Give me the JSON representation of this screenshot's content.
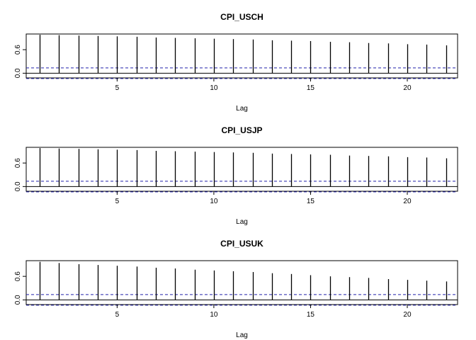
{
  "chart_data": [
    {
      "type": "bar",
      "title": "CPI_USCH",
      "xlabel": "Lag",
      "ylabel": "",
      "xlim": [
        0.3,
        22.6
      ],
      "ylim": [
        -0.12,
        1.0
      ],
      "xticks": [
        5,
        10,
        15,
        20
      ],
      "yticks": [
        0.0,
        0.6
      ],
      "ci": 0.135,
      "x": [
        1,
        2,
        3,
        4,
        5,
        6,
        7,
        8,
        9,
        10,
        11,
        12,
        13,
        14,
        15,
        16,
        17,
        18,
        19,
        20,
        21,
        22
      ],
      "values": [
        0.98,
        0.97,
        0.96,
        0.95,
        0.94,
        0.93,
        0.91,
        0.9,
        0.89,
        0.88,
        0.87,
        0.86,
        0.84,
        0.83,
        0.82,
        0.8,
        0.79,
        0.77,
        0.76,
        0.74,
        0.73,
        0.71
      ]
    },
    {
      "type": "bar",
      "title": "CPI_USJP",
      "xlabel": "Lag",
      "ylabel": "",
      "xlim": [
        0.3,
        22.6
      ],
      "ylim": [
        -0.12,
        1.0
      ],
      "xticks": [
        5,
        10,
        15,
        20
      ],
      "yticks": [
        0.0,
        0.6
      ],
      "ci": 0.135,
      "x": [
        1,
        2,
        3,
        4,
        5,
        6,
        7,
        8,
        9,
        10,
        11,
        12,
        13,
        14,
        15,
        16,
        17,
        18,
        19,
        20,
        21,
        22
      ],
      "values": [
        0.98,
        0.97,
        0.96,
        0.95,
        0.94,
        0.93,
        0.91,
        0.9,
        0.89,
        0.88,
        0.87,
        0.86,
        0.84,
        0.83,
        0.82,
        0.81,
        0.79,
        0.78,
        0.77,
        0.75,
        0.74,
        0.72
      ]
    },
    {
      "type": "bar",
      "title": "CPI_USUK",
      "xlabel": "Lag",
      "ylabel": "",
      "xlim": [
        0.3,
        22.6
      ],
      "ylim": [
        -0.12,
        1.0
      ],
      "xticks": [
        5,
        10,
        15,
        20
      ],
      "yticks": [
        0.0,
        0.6
      ],
      "ci": 0.135,
      "x": [
        1,
        2,
        3,
        4,
        5,
        6,
        7,
        8,
        9,
        10,
        11,
        12,
        13,
        14,
        15,
        16,
        17,
        18,
        19,
        20,
        21,
        22
      ],
      "values": [
        0.97,
        0.94,
        0.91,
        0.89,
        0.87,
        0.85,
        0.82,
        0.8,
        0.77,
        0.75,
        0.73,
        0.71,
        0.68,
        0.66,
        0.63,
        0.6,
        0.58,
        0.56,
        0.53,
        0.51,
        0.49,
        0.47
      ]
    }
  ]
}
